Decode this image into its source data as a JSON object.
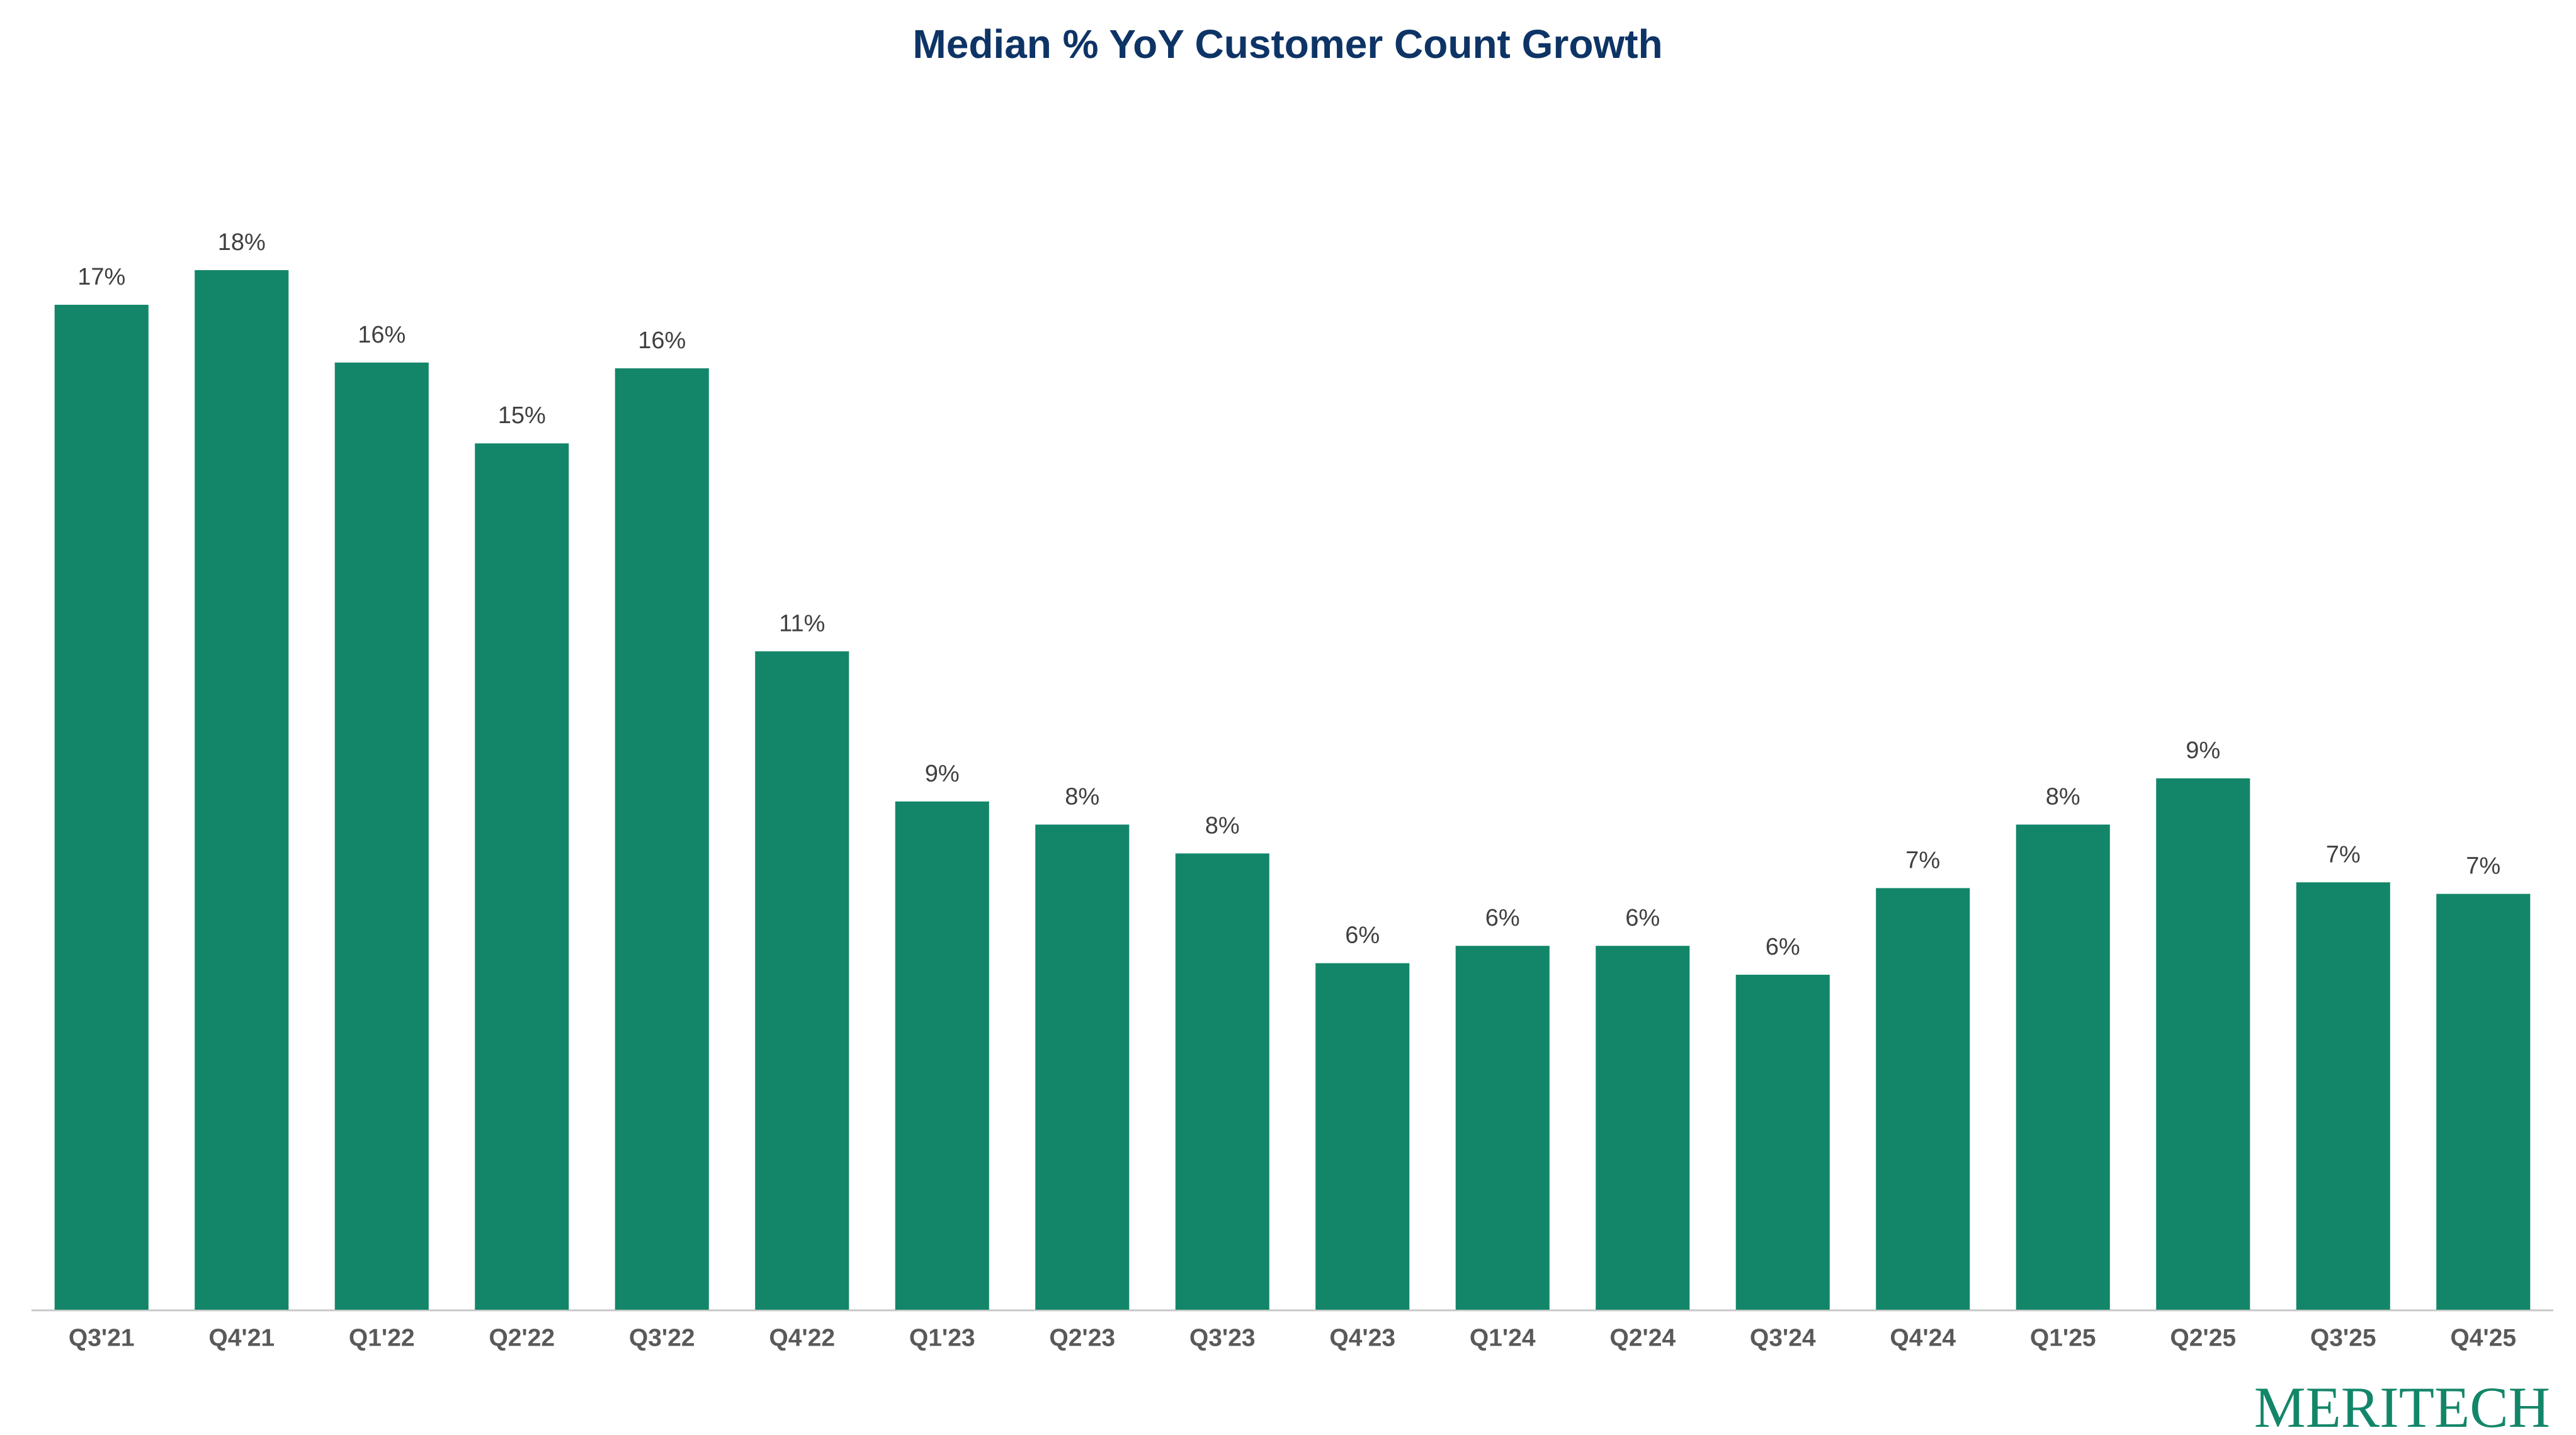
{
  "chart_data": {
    "type": "bar",
    "title": "Median % YoY Customer Count Growth",
    "categories": [
      "Q3'21",
      "Q4'21",
      "Q1'22",
      "Q2'22",
      "Q3'22",
      "Q4'22",
      "Q1'23",
      "Q2'23",
      "Q3'23",
      "Q4'23",
      "Q1'24",
      "Q2'24",
      "Q3'24",
      "Q4'24",
      "Q1'25",
      "Q2'25",
      "Q3'25",
      "Q4'25"
    ],
    "values": [
      17.4,
      18.0,
      16.4,
      15.0,
      16.3,
      11.4,
      8.8,
      8.4,
      7.9,
      6.0,
      6.3,
      6.3,
      5.8,
      7.3,
      8.4,
      9.2,
      7.4,
      7.2
    ],
    "value_labels": [
      "17%",
      "18%",
      "16%",
      "15%",
      "16%",
      "11%",
      "9%",
      "8%",
      "8%",
      "6%",
      "6%",
      "6%",
      "6%",
      "7%",
      "8%",
      "9%",
      "7%",
      "7%"
    ],
    "color": "#138669",
    "logo": "MERITECH"
  }
}
